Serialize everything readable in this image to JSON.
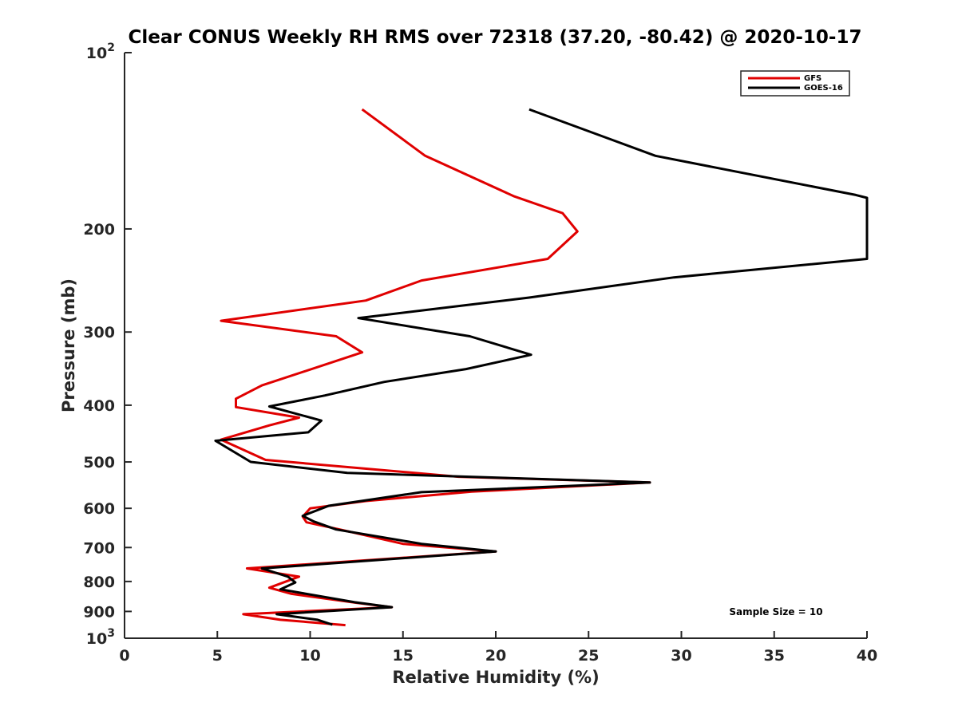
{
  "chart_data": {
    "type": "line",
    "title": "Clear CONUS Weekly RH RMS over 72318 (37.20, -80.42) @ 2020-10-17",
    "xlabel": "Relative Humidity (%)",
    "ylabel": "Pressure (mb)",
    "xlim": [
      0,
      40
    ],
    "ylim": [
      100,
      1000
    ],
    "y_scale": "log",
    "y_reversed": true,
    "grid": false,
    "legend_position": "top-right",
    "x_ticks": [
      0,
      5,
      10,
      15,
      20,
      25,
      30,
      35,
      40
    ],
    "x_tick_labels": [
      "0",
      "5",
      "10",
      "15",
      "20",
      "25",
      "30",
      "35",
      "40"
    ],
    "y_ticks": [
      200,
      300,
      400,
      500,
      600,
      700,
      800,
      900
    ],
    "y_tick_labels": [
      "200",
      "300",
      "400",
      "500",
      "600",
      "700",
      "800",
      "900"
    ],
    "y_end_ticks": [
      {
        "value": 100,
        "base": "10",
        "exp": "2"
      },
      {
        "value": 1000,
        "base": "10",
        "exp": "3"
      }
    ],
    "annotation": "Sample Size = 10",
    "series": [
      {
        "name": "GFS",
        "color": "#e00000",
        "points": [
          [
            12.8,
            125
          ],
          [
            16.2,
            150
          ],
          [
            21.0,
            176
          ],
          [
            23.6,
            188
          ],
          [
            24.4,
            202
          ],
          [
            22.8,
            225
          ],
          [
            16.0,
            245
          ],
          [
            13.0,
            265
          ],
          [
            5.2,
            287
          ],
          [
            11.4,
            305
          ],
          [
            12.8,
            325
          ],
          [
            7.4,
            370
          ],
          [
            6.0,
            390
          ],
          [
            6.0,
            403
          ],
          [
            9.4,
            420
          ],
          [
            7.8,
            433
          ],
          [
            5.2,
            458
          ],
          [
            7.6,
            496
          ],
          [
            18.0,
            530
          ],
          [
            28.3,
            542
          ],
          [
            18.7,
            562
          ],
          [
            13.0,
            583
          ],
          [
            10.0,
            600
          ],
          [
            9.6,
            620
          ],
          [
            9.8,
            634
          ],
          [
            11.6,
            652
          ],
          [
            15.0,
            690
          ],
          [
            20.0,
            711
          ],
          [
            6.6,
            760
          ],
          [
            9.4,
            785
          ],
          [
            7.8,
            820
          ],
          [
            9.0,
            840
          ],
          [
            12.5,
            870
          ],
          [
            14.4,
            885
          ],
          [
            6.4,
            910
          ],
          [
            8.4,
            930
          ],
          [
            11.9,
            950
          ]
        ]
      },
      {
        "name": "GOES-16",
        "color": "#000000",
        "points": [
          [
            21.8,
            125
          ],
          [
            28.6,
            150
          ],
          [
            39.4,
            175
          ],
          [
            40.0,
            177
          ],
          [
            40.0,
            225
          ],
          [
            29.6,
            242
          ],
          [
            21.8,
            262
          ],
          [
            12.6,
            284
          ],
          [
            18.6,
            305
          ],
          [
            21.9,
            328
          ],
          [
            18.4,
            347
          ],
          [
            14.0,
            365
          ],
          [
            10.8,
            385
          ],
          [
            7.8,
            402
          ],
          [
            10.6,
            425
          ],
          [
            9.9,
            445
          ],
          [
            4.9,
            460
          ],
          [
            6.8,
            500
          ],
          [
            12.0,
            522
          ],
          [
            28.3,
            542
          ],
          [
            16.0,
            563
          ],
          [
            11.0,
            594
          ],
          [
            9.6,
            618
          ],
          [
            10.2,
            632
          ],
          [
            11.4,
            652
          ],
          [
            16.0,
            690
          ],
          [
            20.0,
            711
          ],
          [
            7.4,
            760
          ],
          [
            8.8,
            785
          ],
          [
            9.2,
            803
          ],
          [
            8.4,
            825
          ],
          [
            12.4,
            868
          ],
          [
            14.4,
            885
          ],
          [
            8.2,
            910
          ],
          [
            10.4,
            930
          ],
          [
            11.2,
            948
          ]
        ]
      }
    ]
  }
}
